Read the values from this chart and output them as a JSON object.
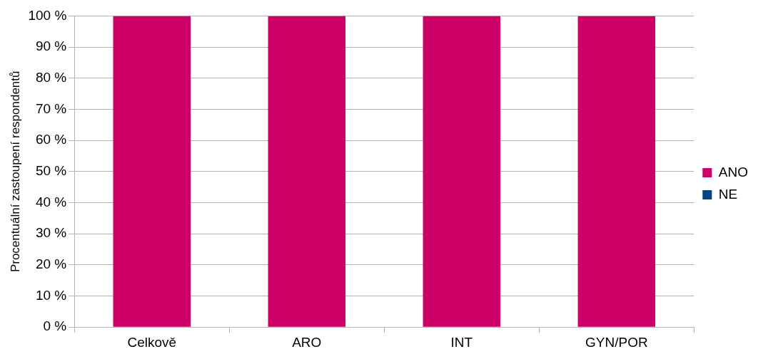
{
  "chart_data": {
    "type": "bar",
    "ylabel": "Procentuální zastoupení respondentů",
    "categories": [
      "Celkově",
      "ARO",
      "INT",
      "GYN/POR"
    ],
    "stacked": true,
    "series": [
      {
        "name": "ANO",
        "color": "#cc0066",
        "values": [
          100,
          100,
          100,
          100
        ]
      },
      {
        "name": "NE",
        "color": "#004586",
        "values": [
          0,
          0,
          0,
          0
        ]
      }
    ],
    "ylim": [
      0,
      100
    ],
    "yticks": [
      {
        "value": 0,
        "label": "0 %"
      },
      {
        "value": 10,
        "label": "10 %"
      },
      {
        "value": 20,
        "label": "20 %"
      },
      {
        "value": 30,
        "label": "30 %"
      },
      {
        "value": 40,
        "label": "40 %"
      },
      {
        "value": 50,
        "label": "50 %"
      },
      {
        "value": 60,
        "label": "60 %"
      },
      {
        "value": 70,
        "label": "70 %"
      },
      {
        "value": 80,
        "label": "80 %"
      },
      {
        "value": 90,
        "label": "90 %"
      },
      {
        "value": 100,
        "label": "100 %"
      }
    ],
    "grid": "y",
    "legend": "right"
  }
}
